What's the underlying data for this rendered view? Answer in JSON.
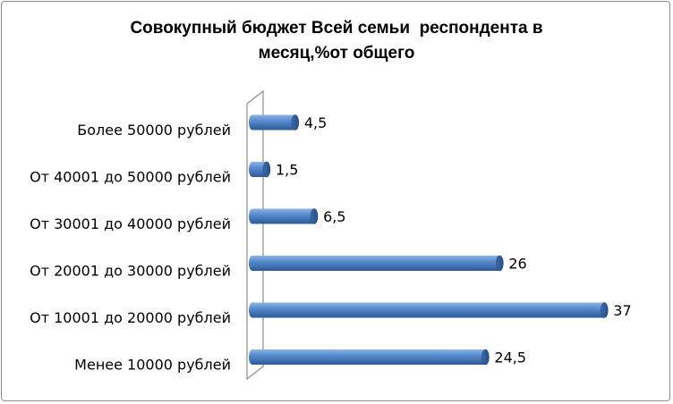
{
  "chart_data": {
    "type": "bar",
    "orientation": "horizontal",
    "title_line1": "Совокупный бюджет Всей семьи  респондента в",
    "title_line2": "месяц,%от общего",
    "categories": [
      "Более 50000 рублей",
      "От  40001 до 50000 рублей",
      "От 30001 до 40000 рублей",
      "От 20001 до 30000 рублей",
      "От 10001 до 20000 рублей",
      "Менее 10000 рублей"
    ],
    "values": [
      4.5,
      1.5,
      6.5,
      26,
      37,
      24.5
    ],
    "value_labels": [
      "4,5",
      "1,5",
      "6,5",
      "26",
      "37",
      "24,5"
    ],
    "xlim": [
      0,
      37
    ],
    "grid": false,
    "legend": "none",
    "bar_color": "#4a7ebf"
  }
}
